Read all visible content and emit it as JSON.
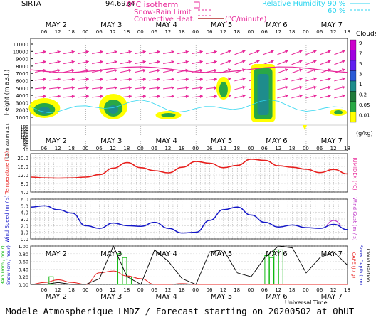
{
  "header": {
    "site": "SIRTA",
    "coord": "94.6934",
    "legend_0c": "0°C isotherm",
    "legend_snow_rain": "Snow-Rain Limit",
    "legend_convective": "Convective Heat.",
    "legend_convective_unit": "(°C/minute)",
    "legend_rh": "Relative Humidity",
    "legend_rh_90": "90 %",
    "legend_rh_60": "60 %"
  },
  "colors": {
    "isotherm": "#e8299a",
    "rh": "#2ed6f0",
    "temperature": "#e8201e",
    "humidex": "#e8299a",
    "wind_speed": "#1417c8",
    "wind_gust": "#c03cc8",
    "rain": "#11b811",
    "snow": "#1417c8",
    "cape": "#e8201e",
    "snow_depth": "#1417c8",
    "cloud_fraction": "#000000"
  },
  "time_axis": {
    "day_labels": [
      "MAY  2",
      "MAY  3",
      "MAY  4",
      "MAY  5",
      "MAY  6",
      "MAY  7"
    ],
    "hour_labels": [
      "06",
      "12",
      "18",
      "00",
      "06",
      "12",
      "18",
      "00",
      "06",
      "12",
      "18",
      "00",
      "06",
      "12",
      "18",
      "00",
      "06",
      "12",
      "18",
      "00",
      "06",
      "12",
      "18"
    ],
    "xlabel": "Universal Time"
  },
  "cloud_legend": {
    "title": "Clouds",
    "ticks": [
      "9",
      "7",
      "5",
      "3",
      "1",
      "0.2",
      "0.05",
      "0.01"
    ],
    "unit": "(g/kg)",
    "colors": [
      "#cc00cc",
      "#a000e0",
      "#6020f0",
      "#2a5bd6",
      "#1e8c8c",
      "#1f7a3a",
      "#29a845",
      "#ffff00"
    ]
  },
  "height_axis": {
    "ylabel": "Height  (m a.s.l.)",
    "ylabel2": "Up to 200 m a.g.l.",
    "ticks_upper": [
      "11000",
      "10000",
      "9000",
      "8000",
      "7000",
      "6000",
      "5000",
      "4000",
      "3000",
      "2000",
      "1000"
    ],
    "ticks_lower": [
      "180",
      "160",
      "140",
      "120",
      "100",
      "80",
      "60",
      "40",
      "20",
      "10"
    ]
  },
  "chart_data": [
    {
      "type": "line",
      "title": "Temperature / Humidex",
      "ylabel": "Temperature (°C)",
      "ylabel_right": "HUMIDEX (°C)",
      "ylim": [
        4,
        22
      ],
      "yticks": [
        "20.0",
        "16.0",
        "12.0",
        "8.0",
        "4.0"
      ],
      "x_hours": [
        0,
        6,
        12,
        18,
        24,
        30,
        36,
        42,
        48,
        54,
        60,
        66,
        72,
        78,
        84,
        90,
        96,
        102,
        108,
        114,
        120,
        126,
        132,
        138
      ],
      "series": [
        {
          "name": "Temperature",
          "values": [
            11.0,
            10.6,
            10.5,
            10.6,
            11.0,
            12.2,
            15.2,
            17.8,
            15.4,
            14.0,
            13.0,
            15.6,
            18.3,
            17.5,
            15.4,
            16.5,
            19.4,
            18.8,
            16.3,
            15.6,
            14.7,
            13.1,
            14.6,
            12.5
          ]
        }
      ]
    },
    {
      "type": "line",
      "title": "Wind Speed / Wind Gust",
      "ylabel": "Wind Speed (m / s)",
      "ylabel_right": "Wind Gust (m / s)",
      "ylim": [
        0,
        6
      ],
      "yticks": [
        "6.0",
        "5.0",
        "4.0",
        "3.0",
        "2.0",
        "1.0",
        "0.0"
      ],
      "x_hours": [
        0,
        6,
        12,
        18,
        24,
        30,
        36,
        42,
        48,
        54,
        60,
        66,
        72,
        78,
        84,
        90,
        96,
        102,
        108,
        114,
        120,
        126,
        132,
        138
      ],
      "series": [
        {
          "name": "Wind Speed",
          "values": [
            4.8,
            5.0,
            4.4,
            3.9,
            2.0,
            1.6,
            2.4,
            2.0,
            1.9,
            2.5,
            1.6,
            0.9,
            1.0,
            2.8,
            4.4,
            4.8,
            3.6,
            2.5,
            1.8,
            2.1,
            1.7,
            1.6,
            2.2,
            1.4
          ]
        },
        {
          "name": "Wind Gust",
          "values": [
            null,
            null,
            null,
            null,
            null,
            null,
            null,
            null,
            null,
            null,
            null,
            null,
            null,
            null,
            null,
            null,
            null,
            null,
            null,
            null,
            null,
            null,
            3.2,
            null
          ]
        }
      ]
    },
    {
      "type": "bar",
      "title": "Rain / Snow / CAPE / Cloud Fraction",
      "ylabel": "Rain (mm / hour)",
      "ylabel2": "Snow (cm / hour)",
      "ylabel_right": "CAPE (J / g)",
      "ylabel_right2": "Snow Depth (cm)",
      "ylabel_right3": "Cloud Fraction",
      "ylim": [
        0,
        1.0
      ],
      "yticks": [
        "1.00",
        "0.80",
        "0.60",
        "0.40",
        "0.20",
        "0.00"
      ],
      "rain_bars": [
        {
          "hour": 8,
          "value": 0.2
        },
        {
          "hour": 38,
          "value": 0.8
        },
        {
          "hour": 40,
          "value": 0.7
        },
        {
          "hour": 42,
          "value": 0.2
        },
        {
          "hour": 102,
          "value": 0.75
        },
        {
          "hour": 104,
          "value": 0.7
        },
        {
          "hour": 106,
          "value": 0.9
        },
        {
          "hour": 108,
          "value": 0.9
        }
      ],
      "series": [
        {
          "name": "CAPE",
          "values": [
            0.0,
            0.05,
            0.12,
            0.05,
            0.0,
            0.3,
            0.35,
            0.22,
            0.15,
            0.0,
            0.0,
            0.02,
            0.0,
            0.0,
            0.0,
            0.0,
            0.0,
            0.0,
            0.0,
            0.0,
            0.0,
            0.0,
            0.0,
            0.0
          ]
        },
        {
          "name": "Cloud Fraction",
          "values": [
            0.0,
            0.0,
            0.05,
            0.0,
            0.0,
            0.15,
            1.0,
            0.2,
            0.0,
            0.9,
            0.6,
            0.15,
            0.0,
            0.85,
            0.9,
            0.3,
            0.2,
            0.7,
            1.0,
            0.95,
            0.3,
            0.7,
            0.85,
            0.5
          ]
        }
      ]
    }
  ],
  "footer": "Modele Atmospherique LMDZ / Forecast starting on 20200502 at 0hUT"
}
